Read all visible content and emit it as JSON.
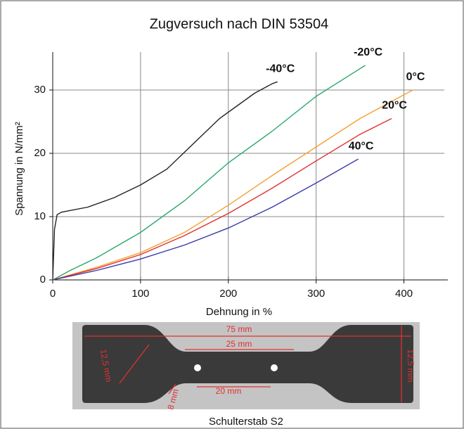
{
  "chart_data": {
    "type": "line",
    "title": "Zugversuch nach DIN 53504",
    "x_label": "Dehnung in %",
    "y_label": "Spannung in N/mm²",
    "xlim": [
      0,
      450
    ],
    "ylim": [
      0,
      36
    ],
    "xticks": [
      0,
      100,
      200,
      300,
      400
    ],
    "yticks": [
      0,
      10,
      20,
      30
    ],
    "grid": true,
    "series": [
      {
        "name": "-40°C",
        "color": "#222222",
        "x": [
          0,
          2,
          5,
          10,
          40,
          70,
          100,
          130,
          160,
          190,
          210,
          230,
          250,
          256
        ],
        "values": [
          0,
          8,
          10.3,
          10.7,
          11.5,
          13,
          15,
          17.5,
          21.5,
          25.5,
          27.5,
          29.5,
          31,
          31.3
        ]
      },
      {
        "name": "-20°C",
        "color": "#2aa86a",
        "x": [
          0,
          20,
          50,
          100,
          150,
          200,
          250,
          300,
          356
        ],
        "values": [
          0,
          1.5,
          3.5,
          7.5,
          12.5,
          18.5,
          23.5,
          29,
          33.9
        ]
      },
      {
        "name": "0°C",
        "color": "#f5a030",
        "x": [
          0,
          50,
          100,
          150,
          200,
          250,
          300,
          350,
          410
        ],
        "values": [
          0,
          2,
          4.3,
          7.5,
          11.8,
          16.5,
          21,
          25.5,
          30
        ]
      },
      {
        "name": "20°C",
        "color": "#e03030",
        "x": [
          0,
          50,
          100,
          150,
          200,
          250,
          300,
          350,
          386
        ],
        "values": [
          0,
          1.8,
          4,
          7,
          10.5,
          14.5,
          18.8,
          23,
          25.5
        ]
      },
      {
        "name": "40°C",
        "color": "#3a3aa8",
        "x": [
          0,
          50,
          100,
          150,
          200,
          250,
          300,
          348
        ],
        "values": [
          0,
          1.5,
          3.3,
          5.5,
          8.2,
          11.5,
          15.3,
          19.1
        ]
      }
    ]
  },
  "specimen": {
    "caption": "Schulterstab S2",
    "length": "75 mm",
    "gauge": "25 mm",
    "narrow": "20 mm",
    "width_right": "12,5 mm",
    "width_left": "12,5 mm",
    "neck": "8 mm"
  }
}
